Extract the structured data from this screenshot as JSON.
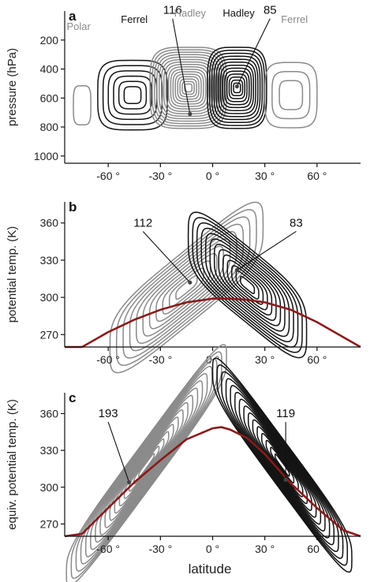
{
  "colors": {
    "southern_cell": "#8a8a8a",
    "northern_cell": "#111111",
    "tropopause_curve": "#8b1a1a",
    "axis": "#111111"
  },
  "figure": {
    "xlabel": "latitude",
    "xticks": [
      -60,
      -30,
      0,
      30,
      60
    ],
    "xtick_suffix": " °",
    "xlim": [
      -85,
      85
    ]
  },
  "chart_data": [
    {
      "type": "contour",
      "panel_label": "a",
      "ylabel": "pressure (hPa)",
      "yticks": [
        200,
        400,
        600,
        800,
        1000
      ],
      "ylim": [
        1050,
        0
      ],
      "y_inverted": true,
      "cell_labels": [
        {
          "text": "Polar",
          "lat": -77,
          "y": 130,
          "color": "gray"
        },
        {
          "text": "Ferrel",
          "lat": -45,
          "y": 82,
          "color": "black"
        },
        {
          "text": "Hadley",
          "lat": -13,
          "y": 38,
          "color": "gray"
        },
        {
          "text": "Hadley",
          "lat": 15,
          "y": 38,
          "color": "black"
        },
        {
          "text": "Ferrel",
          "lat": 47,
          "y": 82,
          "color": "gray"
        }
      ],
      "max_labels": [
        {
          "text": "116",
          "lat": -13,
          "y": 710,
          "label_lat": -23,
          "label_y": 20
        },
        {
          "text": "85",
          "lat": 14,
          "y": 520,
          "label_lat": 33,
          "label_y": 20
        }
      ],
      "cells": [
        {
          "lat": -75,
          "y": 650,
          "w": 5,
          "h": 270,
          "n": 1,
          "color": "gray"
        },
        {
          "lat": -46,
          "y": 580,
          "w": 20,
          "h": 480,
          "n": 6,
          "color": "black"
        },
        {
          "lat": -14,
          "y": 530,
          "w": 22,
          "h": 560,
          "n": 16,
          "color": "gray"
        },
        {
          "lat": 14,
          "y": 530,
          "w": 17,
          "h": 560,
          "n": 13,
          "color": "black"
        },
        {
          "lat": 45,
          "y": 580,
          "w": 15,
          "h": 450,
          "n": 3,
          "color": "gray"
        }
      ]
    },
    {
      "type": "contour",
      "panel_label": "b",
      "ylabel": "potential temp. (K)",
      "yticks": [
        270,
        300,
        330,
        360
      ],
      "ylim": [
        260,
        377
      ],
      "cell_labels": [],
      "max_labels": [
        {
          "text": "112",
          "lat": -13,
          "y": 312,
          "label_lat": -40,
          "label_y": 357
        },
        {
          "text": "83",
          "lat": 14,
          "y": 322,
          "label_lat": 48,
          "label_y": 357
        }
      ],
      "tropopause": {
        "lat": [
          -85,
          -75,
          -60,
          -45,
          -30,
          -15,
          0,
          5,
          10,
          20,
          30,
          45,
          60,
          75,
          85
        ],
        "theta": [
          255,
          260,
          272,
          282,
          290,
          296,
          299,
          299,
          299,
          298,
          296,
          290,
          280,
          268,
          258
        ]
      },
      "cells": [
        {
          "lat": -15,
          "y": 308,
          "w": 44,
          "h": 62,
          "n": 11,
          "color": "gray",
          "skew": -0.9
        },
        {
          "lat": 20,
          "y": 310,
          "w": 34,
          "h": 62,
          "n": 13,
          "color": "black",
          "skew": 0.9
        }
      ]
    },
    {
      "type": "contour",
      "panel_label": "c",
      "ylabel": "equiv. potential temp. (K)",
      "yticks": [
        270,
        300,
        330,
        360
      ],
      "ylim": [
        260,
        377
      ],
      "cell_labels": [],
      "max_labels": [
        {
          "text": "193",
          "lat": -48,
          "y": 304,
          "label_lat": -60,
          "label_y": 357
        },
        {
          "text": "119",
          "lat": 42,
          "y": 306,
          "label_lat": 42,
          "label_y": 357
        }
      ],
      "tropopause": {
        "lat": [
          -85,
          -75,
          -60,
          -45,
          -30,
          -15,
          0,
          5,
          10,
          20,
          30,
          45,
          60,
          75,
          85
        ],
        "theta": [
          252,
          262,
          283,
          304,
          322,
          339,
          348,
          349,
          347,
          340,
          327,
          303,
          283,
          265,
          255
        ]
      },
      "cells": [
        {
          "lat": -38,
          "y": 318,
          "w": 46,
          "h": 44,
          "n": 16,
          "color": "gray",
          "skew": -1.5
        },
        {
          "lat": 40,
          "y": 318,
          "w": 40,
          "h": 44,
          "n": 15,
          "color": "black",
          "skew": 1.5
        }
      ]
    }
  ]
}
